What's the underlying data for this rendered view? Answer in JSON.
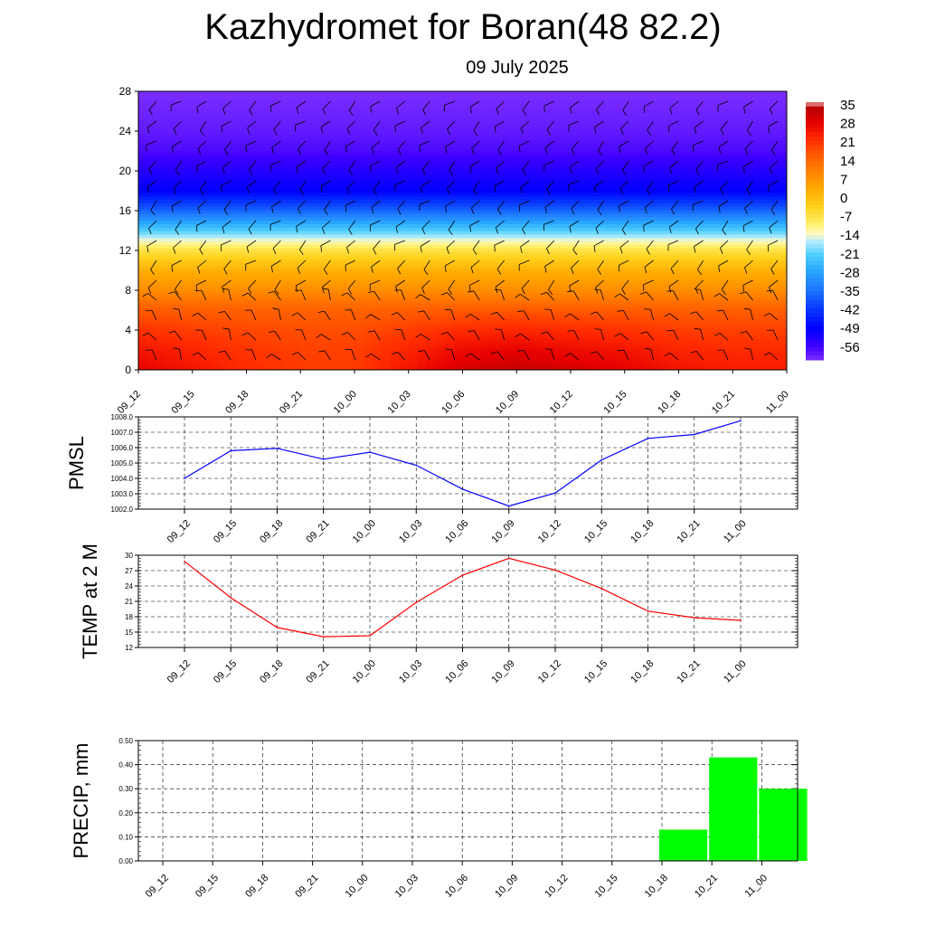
{
  "title": "Kazhydromet for Boran(48 82.2)",
  "subtitle": "09 July 2025",
  "colors": {
    "pmsl_line": "#0000ff",
    "temp_line": "#ff0000",
    "precip_bar": "#00ff00",
    "grid": "#000000"
  },
  "chart_data": [
    {
      "type": "heatmap",
      "name": "vertical-cross-section",
      "x_labels": [
        "09_12",
        "09_15",
        "09_18",
        "09_21",
        "10_00",
        "10_03",
        "10_06",
        "10_09",
        "10_12",
        "10_15",
        "10_18",
        "10_21",
        "11_00"
      ],
      "y_ticks": [
        0,
        4,
        8,
        12,
        16,
        20,
        24,
        28
      ],
      "ylim": [
        0,
        28
      ],
      "colorbar": {
        "labels": [
          "35",
          "28",
          "21",
          "14",
          "7",
          "0",
          "-7",
          "-14",
          "-21",
          "-28",
          "-35",
          "-42",
          "-49",
          "-56"
        ],
        "range": [
          -60,
          38
        ]
      },
      "temperature_profile": [
        {
          "level": 0,
          "value": 30
        },
        {
          "level": 2,
          "value": 27
        },
        {
          "level": 4,
          "value": 23
        },
        {
          "level": 6,
          "value": 18
        },
        {
          "level": 8,
          "value": 10
        },
        {
          "level": 10,
          "value": 4
        },
        {
          "level": 12,
          "value": -5
        },
        {
          "level": 13,
          "value": -12
        },
        {
          "level": 14,
          "value": -20
        },
        {
          "level": 16,
          "value": -35
        },
        {
          "level": 18,
          "value": -48
        },
        {
          "level": 20,
          "value": -52
        },
        {
          "level": 22,
          "value": -56
        },
        {
          "level": 24,
          "value": -58
        },
        {
          "level": 28,
          "value": -60
        }
      ],
      "surface_diurnal_anomaly": [
        0,
        -3,
        -6,
        -8,
        -8,
        -3,
        2,
        4,
        2,
        0,
        -3,
        -4,
        -4
      ],
      "grid": false,
      "wind_barbs": true
    },
    {
      "type": "line",
      "name": "pmsl",
      "ylabel": "PMSL",
      "x": [
        "09_12",
        "09_15",
        "09_18",
        "09_21",
        "10_00",
        "10_03",
        "10_06",
        "10_09",
        "10_12",
        "10_15",
        "10_18",
        "10_21",
        "11_00"
      ],
      "y_ticks": [
        "1002.0",
        "1003.0",
        "1004.0",
        "1005.0",
        "1006.0",
        "1007.0",
        "1008.0"
      ],
      "ylim": [
        1002,
        1008
      ],
      "values": [
        1004.0,
        1005.8,
        1005.95,
        1005.25,
        1005.7,
        1004.85,
        1003.3,
        1002.2,
        1003.05,
        1005.2,
        1006.6,
        1006.85,
        1007.75
      ],
      "grid": true
    },
    {
      "type": "line",
      "name": "temp-2m",
      "ylabel": "TEMP at 2 M",
      "x": [
        "09_12",
        "09_15",
        "09_18",
        "09_21",
        "10_00",
        "10_03",
        "10_06",
        "10_09",
        "10_12",
        "10_15",
        "10_18",
        "10_21",
        "11_00"
      ],
      "y_ticks": [
        "12",
        "15",
        "18",
        "21",
        "24",
        "27",
        "30"
      ],
      "ylim": [
        12,
        30
      ],
      "values": [
        28.8,
        21.7,
        15.9,
        14.1,
        14.3,
        20.8,
        26.1,
        29.4,
        27.1,
        23.5,
        19.1,
        17.8,
        17.3
      ],
      "grid": true
    },
    {
      "type": "bar",
      "name": "precip",
      "ylabel": "PRECIP, mm",
      "x": [
        "09_12",
        "09_15",
        "09_18",
        "09_21",
        "10_00",
        "10_03",
        "10_06",
        "10_09",
        "10_12",
        "10_15",
        "10_18",
        "10_21",
        "11_00"
      ],
      "y_ticks": [
        "0.00",
        "0.10",
        "0.20",
        "0.30",
        "0.40",
        "0.50"
      ],
      "ylim": [
        0,
        0.5
      ],
      "values": [
        0,
        0,
        0,
        0,
        0,
        0,
        0,
        0,
        0,
        0,
        0.13,
        0.43,
        0.3
      ],
      "grid": true
    }
  ]
}
